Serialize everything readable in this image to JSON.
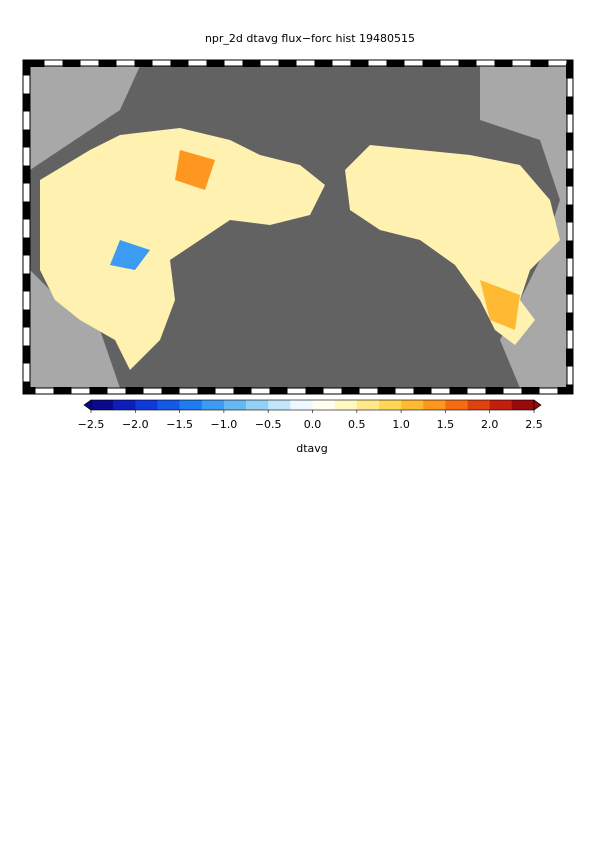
{
  "chart_data": {
    "type": "map",
    "title": "npr_2d dtavg flux−forc hist 19480515",
    "colorbar": {
      "label": "dtavg",
      "lim": [
        -2.5,
        2.5
      ],
      "ticks": [
        {
          "value": -2.5,
          "label": "−2.5"
        },
        {
          "value": -2,
          "label": "−2.0"
        },
        {
          "value": -1.5,
          "label": "−1.5"
        },
        {
          "value": -1,
          "label": "−1.0"
        },
        {
          "value": -0.5,
          "label": "−0.5"
        },
        {
          "value": 0,
          "label": "0.0"
        },
        {
          "value": 0.5,
          "label": "0.5"
        },
        {
          "value": 1,
          "label": "1.0"
        },
        {
          "value": 1.5,
          "label": "1.5"
        },
        {
          "value": 2,
          "label": "2.0"
        },
        {
          "value": 2.5,
          "label": "2.5"
        }
      ],
      "colors": [
        "#0a0a8c",
        "#0d1fb8",
        "#0d3ad8",
        "#1259e6",
        "#1f7cf0",
        "#3c9bf2",
        "#66b8f2",
        "#94d0f5",
        "#c3e6fa",
        "#eef8ff",
        "#fffef0",
        "#fff7c4",
        "#ffe98a",
        "#ffd655",
        "#ffb933",
        "#ff961f",
        "#f56c12",
        "#e0420d",
        "#c41e0d",
        "#990a0a"
      ]
    }
  }
}
